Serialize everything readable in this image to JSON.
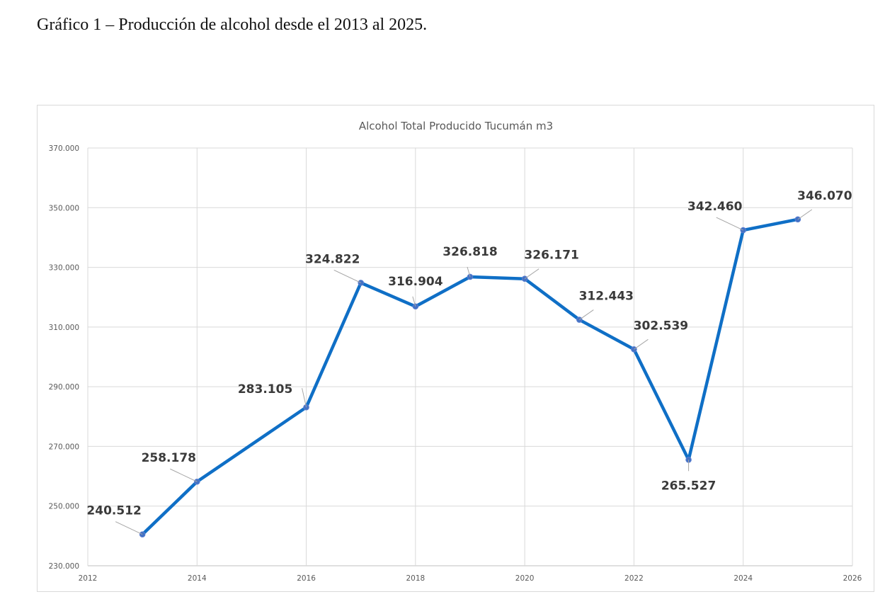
{
  "caption": "Gráfico 1 – Producción de alcohol desde el 2013 al 2025.",
  "chart_data": {
    "type": "line",
    "title": "Alcohol  Total Producido Tucumán m3",
    "xlabel": "",
    "ylabel": "",
    "xlim": [
      2012,
      2026
    ],
    "ylim": [
      230000,
      370000
    ],
    "x_ticks": [
      2012,
      2014,
      2016,
      2018,
      2020,
      2022,
      2024,
      2026
    ],
    "x_tick_labels": [
      "2012",
      "2014",
      "2016",
      "2018",
      "2020",
      "2022",
      "2024",
      "2026"
    ],
    "y_ticks": [
      230000,
      250000,
      270000,
      290000,
      310000,
      330000,
      350000,
      370000
    ],
    "y_tick_labels": [
      "230.000",
      "250.000",
      "270.000",
      "290.000",
      "310.000",
      "330.000",
      "350.000",
      "370.000"
    ],
    "grid": true,
    "legend": "none",
    "series": [
      {
        "name": "Alcohol Total Producido Tucumán m3",
        "color": "#0F6FC6",
        "marker_color": "#4472C4",
        "x": [
          2013,
          2014,
          2016,
          2017,
          2018,
          2019,
          2020,
          2021,
          2022,
          2023,
          2024,
          2025
        ],
        "values": [
          240512,
          258178,
          283105,
          324822,
          316904,
          326818,
          326171,
          312443,
          302539,
          265527,
          342460,
          346070
        ],
        "labels": [
          "240.512",
          "258.178",
          "283.105",
          "324.822",
          "316.904",
          "326.818",
          "326.171",
          "312.443",
          "302.539",
          "265.527",
          "342.460",
          "346.070"
        ],
        "label_positions": [
          "upper-left",
          "upper-left",
          "left",
          "upper-left",
          "above",
          "above",
          "upper-right",
          "upper-right",
          "upper-right",
          "below",
          "upper-left",
          "upper-right"
        ]
      }
    ]
  }
}
